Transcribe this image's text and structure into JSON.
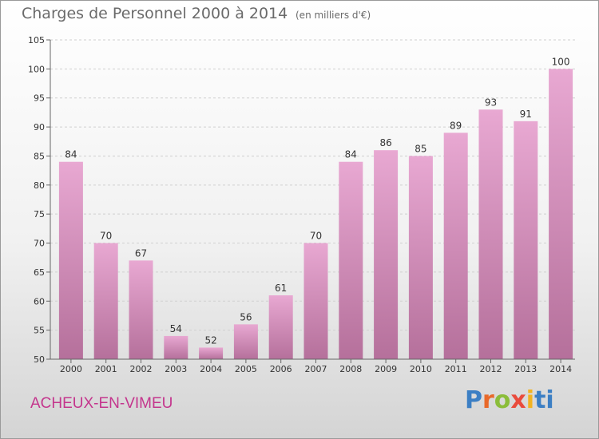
{
  "header": {
    "title": "Charges de Personnel 2000 à 2014",
    "subtitle": "(en milliers d'€)"
  },
  "footer": {
    "city": "ACHEUX-EN-VIMEU",
    "logo": "Proxiti"
  },
  "colors": {
    "bar_top": "#e8a8d2",
    "bar_bottom": "#b5709b",
    "title": "#6a6a6a",
    "city": "#c4368d"
  },
  "chart_data": {
    "type": "bar",
    "categories": [
      "2000",
      "2001",
      "2002",
      "2003",
      "2004",
      "2005",
      "2006",
      "2007",
      "2008",
      "2009",
      "2010",
      "2011",
      "2012",
      "2013",
      "2014"
    ],
    "values": [
      84,
      70,
      67,
      54,
      52,
      56,
      61,
      70,
      84,
      86,
      85,
      89,
      93,
      91,
      100
    ],
    "ylim": [
      50,
      105
    ],
    "yticks": [
      50,
      55,
      60,
      65,
      70,
      75,
      80,
      85,
      90,
      95,
      100,
      105
    ],
    "grid": true
  }
}
